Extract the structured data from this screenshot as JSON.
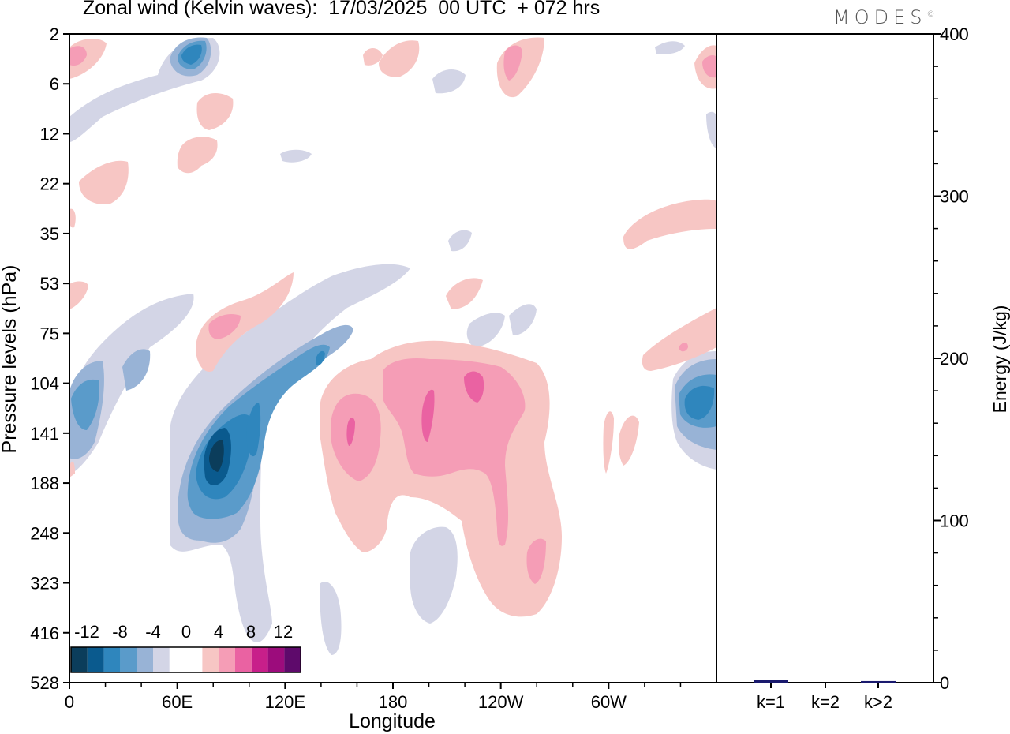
{
  "title": "Zonal wind (Kelvin waves):  17/03/2025  00 UTC  + 072 hrs",
  "logo": "MODES",
  "logo_mark": "©",
  "colors": {
    "neg12": "#0b3d5b",
    "neg10": "#0a5a8e",
    "neg8": "#2f86bd",
    "neg6": "#5a9bca",
    "neg4": "#98b3d6",
    "neg2": "#d3d5e6",
    "zero": "#ffffff",
    "pos2": "#f7c6c4",
    "pos4": "#f59db6",
    "pos6": "#ea62a2",
    "pos8": "#c81f8a",
    "pos10": "#9c0c7c",
    "pos12": "#5e0a6b",
    "energy_bar": "#1a1a6e"
  },
  "chart_data": [
    {
      "type": "heatmap",
      "title": "Zonal wind (Kelvin waves):  17/03/2025  00 UTC  + 072 hrs",
      "xlabel": "Longitude",
      "ylabel": "Pressure levels (hPa)",
      "x_ticks": [
        "0",
        "60E",
        "120E",
        "180",
        "120W",
        "60W"
      ],
      "x_tick_values": [
        0,
        60,
        120,
        180,
        240,
        300
      ],
      "xlim": [
        0,
        360
      ],
      "y_ticks": [
        "2",
        "6",
        "12",
        "22",
        "35",
        "53",
        "75",
        "104",
        "141",
        "188",
        "248",
        "323",
        "416",
        "528"
      ],
      "y_scale": "pressure levels, top to bottom",
      "colorbar": {
        "labels": [
          "-12",
          "-8",
          "-4",
          "0",
          "4",
          "8",
          "12"
        ],
        "levels": [
          -12,
          -10,
          -8,
          -6,
          -4,
          -2,
          0,
          2,
          4,
          6,
          8,
          10,
          12
        ]
      },
      "features": [
        {
          "sign": "negative",
          "min_value": -12,
          "lon": 80,
          "hPa": 141
        },
        {
          "sign": "negative",
          "min_value": -8,
          "lon": 68,
          "hPa": 3
        },
        {
          "sign": "negative",
          "min_value": -8,
          "lon": 345,
          "hPa": 120
        },
        {
          "sign": "positive",
          "max_value": 8,
          "lon": 200,
          "hPa": 120
        },
        {
          "sign": "positive",
          "max_value": 8,
          "lon": 225,
          "hPa": 120
        },
        {
          "sign": "positive",
          "max_value": 6,
          "lon": 155,
          "hPa": 141
        }
      ]
    },
    {
      "type": "bar",
      "ylabel": "Energy (J/kg)",
      "categories": [
        "k=1",
        "k=2",
        "k>2"
      ],
      "values": [
        1.5,
        0,
        1
      ],
      "ylim": [
        0,
        400
      ],
      "y_ticks": [
        "0",
        "100",
        "200",
        "300",
        "400"
      ],
      "y_tick_values": [
        0,
        100,
        200,
        300,
        400
      ]
    }
  ]
}
